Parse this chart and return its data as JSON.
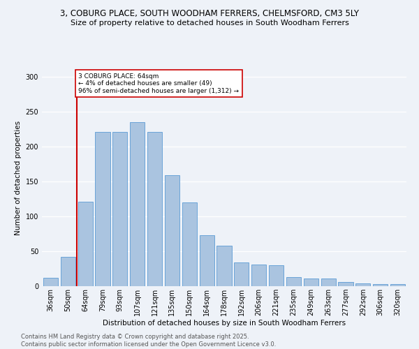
{
  "title1": "3, COBURG PLACE, SOUTH WOODHAM FERRERS, CHELMSFORD, CM3 5LY",
  "title2": "Size of property relative to detached houses in South Woodham Ferrers",
  "xlabel": "Distribution of detached houses by size in South Woodham Ferrers",
  "ylabel": "Number of detached properties",
  "categories": [
    "36sqm",
    "50sqm",
    "64sqm",
    "79sqm",
    "93sqm",
    "107sqm",
    "121sqm",
    "135sqm",
    "150sqm",
    "164sqm",
    "178sqm",
    "192sqm",
    "206sqm",
    "221sqm",
    "235sqm",
    "249sqm",
    "263sqm",
    "277sqm",
    "292sqm",
    "306sqm",
    "320sqm"
  ],
  "values": [
    12,
    42,
    121,
    221,
    221,
    235,
    221,
    159,
    120,
    73,
    58,
    34,
    31,
    30,
    13,
    11,
    11,
    6,
    4,
    3,
    3
  ],
  "bar_color": "#aac4e0",
  "bar_edge_color": "#5b9bd5",
  "vline_index": 2,
  "vline_color": "#cc0000",
  "annotation_text": "3 COBURG PLACE: 64sqm\n← 4% of detached houses are smaller (49)\n96% of semi-detached houses are larger (1,312) →",
  "annotation_box_color": "#ffffff",
  "annotation_box_edge": "#cc0000",
  "bg_color": "#eef2f8",
  "grid_color": "#ffffff",
  "footnote": "Contains HM Land Registry data © Crown copyright and database right 2025.\nContains public sector information licensed under the Open Government Licence v3.0.",
  "title1_fontsize": 8.5,
  "title2_fontsize": 8,
  "axis_fontsize": 7.5,
  "tick_fontsize": 7,
  "footnote_fontsize": 6,
  "ylim": [
    0,
    310
  ],
  "yticks": [
    0,
    50,
    100,
    150,
    200,
    250,
    300
  ]
}
